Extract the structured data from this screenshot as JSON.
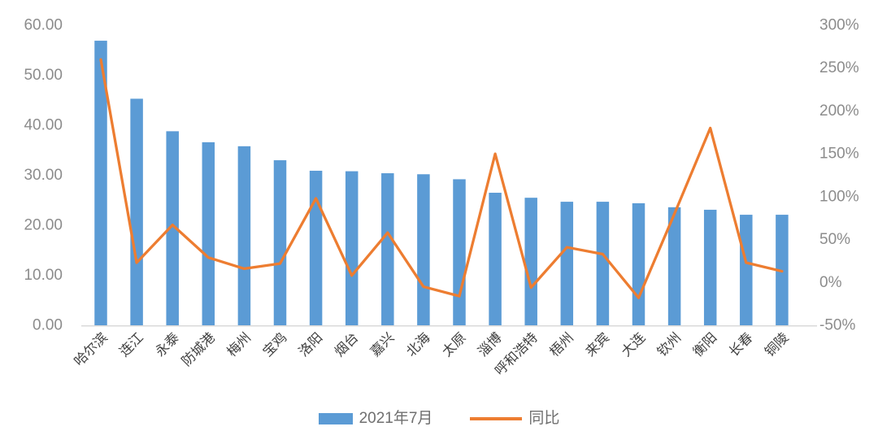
{
  "chart_data": {
    "type": "bar",
    "combo": "bar+line, dual y-axes",
    "title": "",
    "xlabel": "",
    "ylabel": "",
    "grid": false,
    "legend_position": "bottom",
    "categories": [
      "哈尔滨",
      "连江",
      "永泰",
      "防城港",
      "梅州",
      "宝鸡",
      "洛阳",
      "烟台",
      "嘉兴",
      "北海",
      "太原",
      "淄博",
      "呼和浩特",
      "梧州",
      "来宾",
      "大连",
      "钦州",
      "衡阳",
      "长春",
      "铜陵"
    ],
    "series": [
      {
        "name": "2021年7月",
        "type": "bar",
        "axis": "left",
        "values": [
          56.9,
          45.3,
          38.8,
          36.6,
          35.8,
          33.0,
          30.9,
          30.8,
          30.4,
          30.2,
          29.2,
          26.5,
          25.5,
          24.7,
          24.7,
          24.4,
          23.6,
          23.1,
          22.1,
          22.1
        ]
      },
      {
        "name": "同比",
        "type": "line",
        "axis": "right",
        "values_pct": [
          260,
          23,
          67,
          29,
          16,
          22,
          98,
          8,
          58,
          -5,
          -16,
          150,
          -6,
          41,
          33,
          -18,
          80,
          180,
          23,
          13
        ]
      }
    ],
    "left_axis": {
      "tick_labels": [
        "60.00",
        "50.00",
        "40.00",
        "30.00",
        "20.00",
        "10.00",
        "0.00"
      ],
      "tick_values": [
        60,
        50,
        40,
        30,
        20,
        10,
        0
      ],
      "min": 0,
      "max": 60
    },
    "right_axis": {
      "tick_labels": [
        "300%",
        "250%",
        "200%",
        "150%",
        "100%",
        "50%",
        "0%",
        "-50%"
      ],
      "tick_values": [
        300,
        250,
        200,
        150,
        100,
        50,
        0,
        -50
      ],
      "min": -50,
      "max": 300
    }
  },
  "colors": {
    "bar": "#5B9BD5",
    "line": "#ED7D31",
    "axis_label": "#8C8C8C",
    "category_label": "#404040",
    "axis_line": "#D9D9D9",
    "legend_text": "#6F6F6F",
    "background": "#FFFFFF"
  }
}
